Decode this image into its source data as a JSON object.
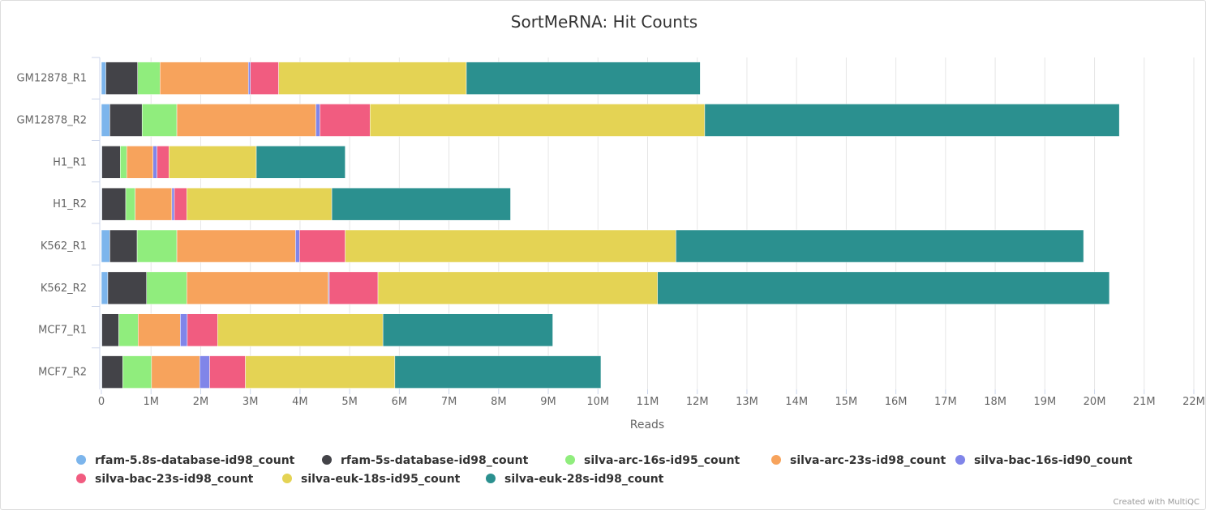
{
  "chart_data": {
    "type": "bar",
    "orientation": "horizontal",
    "stacked": true,
    "title": "SortMeRNA: Hit Counts",
    "xlabel": "Reads",
    "ylabel": "",
    "xlim": [
      0,
      22000000
    ],
    "x_ticks": [
      "0",
      "1M",
      "2M",
      "3M",
      "4M",
      "5M",
      "6M",
      "7M",
      "8M",
      "9M",
      "10M",
      "11M",
      "12M",
      "13M",
      "14M",
      "15M",
      "16M",
      "17M",
      "18M",
      "19M",
      "20M",
      "21M",
      "22M"
    ],
    "grid": true,
    "legend_position": "bottom",
    "categories": [
      "GM12878_R1",
      "GM12878_R2",
      "H1_R1",
      "H1_R2",
      "K562_R1",
      "K562_R2",
      "MCF7_R1",
      "MCF7_R2"
    ],
    "series": [
      {
        "name": "rfam-5.8s-database-id98_count",
        "color": "#7cb5ec",
        "values": [
          90000,
          170000,
          10000,
          10000,
          170000,
          130000,
          10000,
          10000
        ]
      },
      {
        "name": "rfam-5s-database-id98_count",
        "color": "#434348",
        "values": [
          640000,
          650000,
          370000,
          480000,
          550000,
          780000,
          340000,
          420000
        ]
      },
      {
        "name": "silva-arc-16s-id95_count",
        "color": "#90ed7d",
        "values": [
          450000,
          700000,
          130000,
          190000,
          800000,
          810000,
          390000,
          580000
        ]
      },
      {
        "name": "silva-arc-23s-id98_count",
        "color": "#f7a35c",
        "values": [
          1780000,
          2800000,
          530000,
          740000,
          2390000,
          2850000,
          850000,
          970000
        ]
      },
      {
        "name": "silva-bac-16s-id90_count",
        "color": "#8085e9",
        "values": [
          40000,
          80000,
          80000,
          50000,
          80000,
          20000,
          140000,
          200000
        ]
      },
      {
        "name": "silva-bac-23s-id98_count",
        "color": "#f15c80",
        "values": [
          570000,
          1010000,
          240000,
          250000,
          920000,
          980000,
          610000,
          720000
        ]
      },
      {
        "name": "silva-euk-18s-id95_count",
        "color": "#e4d354",
        "values": [
          3780000,
          6740000,
          1760000,
          2920000,
          6660000,
          5630000,
          3330000,
          3010000
        ]
      },
      {
        "name": "silva-euk-28s-id98_count",
        "color": "#2b908f",
        "values": [
          4710000,
          8350000,
          1790000,
          3600000,
          8210000,
          9100000,
          3420000,
          4150000
        ]
      }
    ]
  },
  "credit": "Created with MultiQC"
}
